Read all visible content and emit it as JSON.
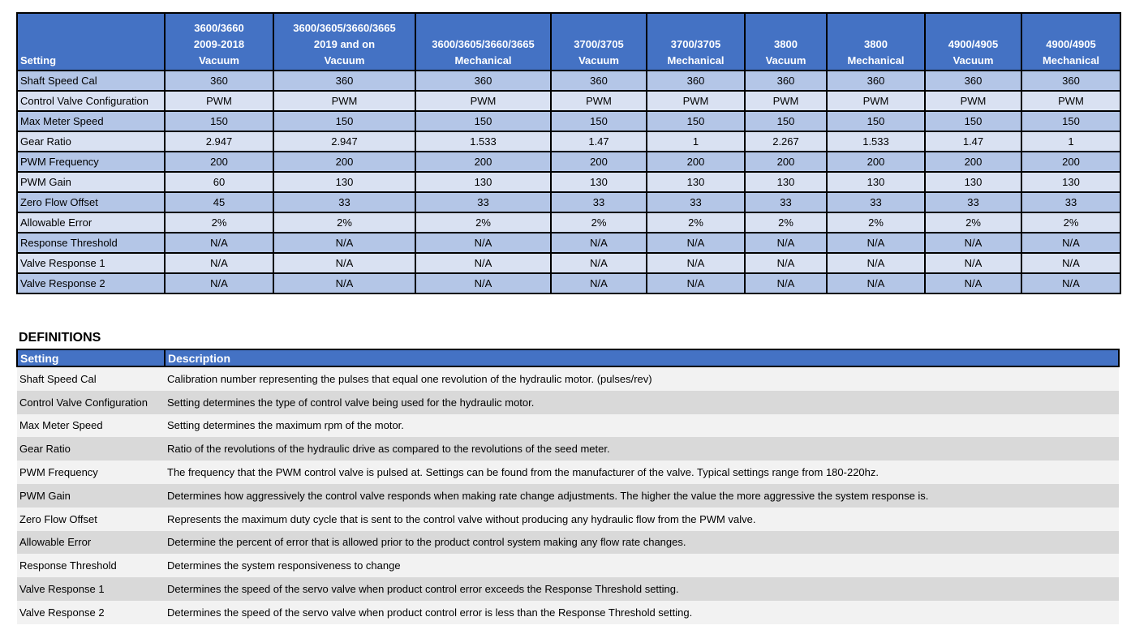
{
  "settings_table": {
    "headers": [
      "Setting",
      "3600/3660\n2009-2018\nVacuum",
      "3600/3605/3660/3665\n2019 and on\nVacuum",
      "3600/3605/3660/3665\nMechanical",
      "3700/3705\nVacuum",
      "3700/3705\nMechanical",
      "3800\nVacuum",
      "3800\nMechanical",
      "4900/4905\nVacuum",
      "4900/4905\nMechanical"
    ],
    "rows": [
      [
        "Shaft Speed Cal",
        "360",
        "360",
        "360",
        "360",
        "360",
        "360",
        "360",
        "360",
        "360"
      ],
      [
        "Control Valve Configuration",
        "PWM",
        "PWM",
        "PWM",
        "PWM",
        "PWM",
        "PWM",
        "PWM",
        "PWM",
        "PWM"
      ],
      [
        "Max Meter Speed",
        "150",
        "150",
        "150",
        "150",
        "150",
        "150",
        "150",
        "150",
        "150"
      ],
      [
        "Gear Ratio",
        "2.947",
        "2.947",
        "1.533",
        "1.47",
        "1",
        "2.267",
        "1.533",
        "1.47",
        "1"
      ],
      [
        "PWM Frequency",
        "200",
        "200",
        "200",
        "200",
        "200",
        "200",
        "200",
        "200",
        "200"
      ],
      [
        "PWM Gain",
        "60",
        "130",
        "130",
        "130",
        "130",
        "130",
        "130",
        "130",
        "130"
      ],
      [
        "Zero Flow Offset",
        "45",
        "33",
        "33",
        "33",
        "33",
        "33",
        "33",
        "33",
        "33"
      ],
      [
        "Allowable Error",
        "2%",
        "2%",
        "2%",
        "2%",
        "2%",
        "2%",
        "2%",
        "2%",
        "2%"
      ],
      [
        "Response Threshold",
        "N/A",
        "N/A",
        "N/A",
        "N/A",
        "N/A",
        "N/A",
        "N/A",
        "N/A",
        "N/A"
      ],
      [
        "Valve Response 1",
        "N/A",
        "N/A",
        "N/A",
        "N/A",
        "N/A",
        "N/A",
        "N/A",
        "N/A",
        "N/A"
      ],
      [
        "Valve Response 2",
        "N/A",
        "N/A",
        "N/A",
        "N/A",
        "N/A",
        "N/A",
        "N/A",
        "N/A",
        "N/A"
      ]
    ]
  },
  "definitions": {
    "title": "DEFINITIONS",
    "headers": [
      "Setting",
      "Description"
    ],
    "rows": [
      [
        "Shaft Speed Cal",
        "Calibration number representing the pulses that equal one revolution of the hydraulic motor. (pulses/rev)"
      ],
      [
        "Control Valve Configuration",
        "Setting determines the type of control valve being used for the hydraulic motor."
      ],
      [
        "Max Meter Speed",
        "Setting determines the maximum rpm of the motor."
      ],
      [
        "Gear Ratio",
        "Ratio of the revolutions of the hydraulic drive as compared to the revolutions of the seed meter."
      ],
      [
        "PWM Frequency",
        "The frequency that the PWM control valve is pulsed at. Settings can be found from the manufacturer of the valve. Typical settings range from 180-220hz."
      ],
      [
        "PWM Gain",
        "Determines how aggressively the control valve responds when making rate change adjustments. The higher the value the more aggressive the system response is."
      ],
      [
        "Zero Flow Offset",
        "Represents the maximum duty cycle that is sent to the control valve without producing any hydraulic flow from the PWM valve."
      ],
      [
        "Allowable Error",
        "Determine the percent of error that is allowed prior to the product control system making any flow rate changes."
      ],
      [
        "Response Threshold",
        "Determines the system responsiveness to change"
      ],
      [
        "Valve Response 1",
        "Determines the speed of the servo valve when product control error exceeds the Response Threshold setting."
      ],
      [
        "Valve Response 2",
        "Determines the speed of the servo valve when product control error is less than the Response Threshold setting."
      ]
    ]
  }
}
